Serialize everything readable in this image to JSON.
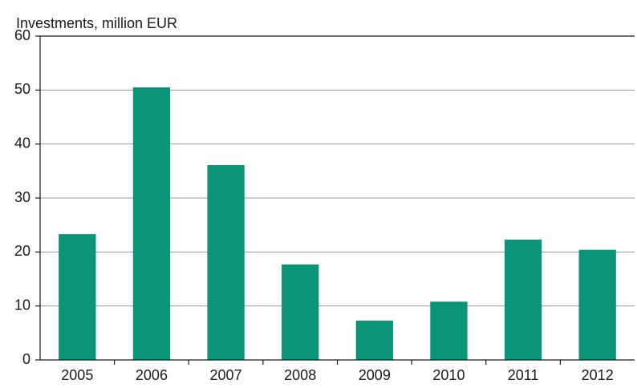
{
  "chart_data": {
    "type": "bar",
    "y_label": "Investments, million EUR",
    "categories": [
      "2005",
      "2006",
      "2007",
      "2008",
      "2009",
      "2010",
      "2011",
      "2012"
    ],
    "values": [
      23.3,
      50.5,
      36.1,
      17.7,
      7.3,
      10.8,
      22.3,
      20.4
    ],
    "color": "#0a9478",
    "ylim": [
      0,
      60
    ],
    "yticks": [
      0,
      10,
      20,
      30,
      40,
      50,
      60
    ],
    "grid": true
  }
}
